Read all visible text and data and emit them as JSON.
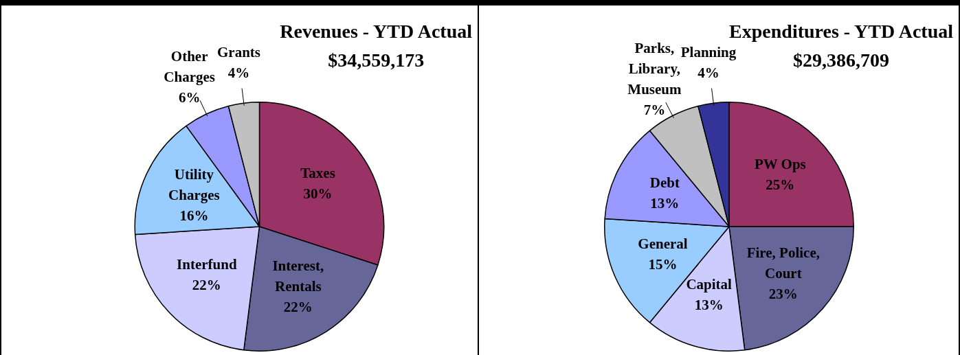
{
  "chart_data": [
    {
      "type": "pie",
      "title": "Revenues - YTD Actual",
      "subtitle": "$34,559,173",
      "categories": [
        "Taxes",
        "Interest, Rentals",
        "Interfund",
        "Utility Charges",
        "Other Charges",
        "Grants"
      ],
      "values": [
        30,
        22,
        22,
        16,
        6,
        4
      ],
      "value_labels": [
        "30%",
        "22%",
        "22%",
        "16%",
        "6%",
        "4%"
      ],
      "colors": [
        "#993366",
        "#666699",
        "#ccccff",
        "#99ccff",
        "#9999ff",
        "#c0c0c0"
      ],
      "legend": false
    },
    {
      "type": "pie",
      "title": "Expenditures - YTD Actual",
      "subtitle": "$29,386,709",
      "categories": [
        "PW Ops",
        "Fire, Police, Court",
        "Capital",
        "General",
        "Debt",
        "Parks, Library, Museum",
        "Planning"
      ],
      "values": [
        25,
        23,
        13,
        15,
        13,
        7,
        4
      ],
      "value_labels": [
        "25%",
        "23%",
        "13%",
        "15%",
        "13%",
        "7%",
        "4%"
      ],
      "colors": [
        "#993366",
        "#666699",
        "#ccccff",
        "#99ccff",
        "#9999ff",
        "#c0c0c0",
        "#333399"
      ],
      "legend": false
    }
  ]
}
